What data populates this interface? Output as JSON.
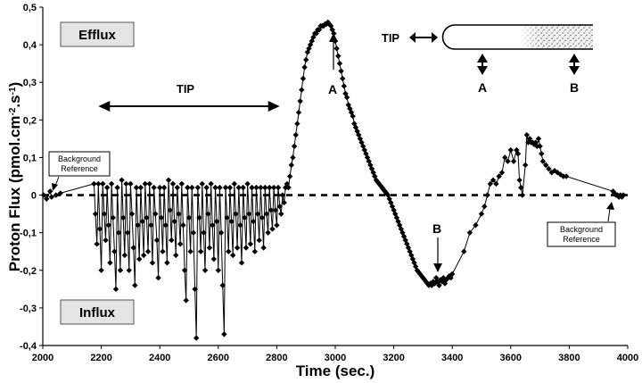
{
  "chart_data": {
    "type": "line",
    "xlabel": "Time (sec.)",
    "ylabel_main": "Proton Flux (pmol.cm",
    "ylabel_sup1": "-2",
    "ylabel_mid": ".s",
    "ylabel_sup2": "-1",
    "ylabel_end": ")",
    "xlim": [
      2000,
      4000
    ],
    "ylim": [
      -0.4,
      0.5
    ],
    "x_ticks": [
      2000,
      2200,
      2400,
      2600,
      2800,
      3000,
      3200,
      3400,
      3600,
      3800,
      4000
    ],
    "y_ticks": [
      {
        "v": 0.5,
        "label": "0,5"
      },
      {
        "v": 0.4,
        "label": "0,4"
      },
      {
        "v": 0.3,
        "label": "0,3"
      },
      {
        "v": 0.2,
        "label": "0,2"
      },
      {
        "v": 0.1,
        "label": "0,1"
      },
      {
        "v": 0,
        "label": "0"
      },
      {
        "v": -0.1,
        "label": "-0,1"
      },
      {
        "v": -0.2,
        "label": "-0,2"
      },
      {
        "v": -0.3,
        "label": "-0,3"
      },
      {
        "v": -0.4,
        "label": "-0,4"
      }
    ],
    "reference_line": {
      "y": 0,
      "style": "dashed"
    },
    "grid": false,
    "series": [
      {
        "marker": "diamond",
        "color": "#000000",
        "points": [
          [
            2003,
            0.0
          ],
          [
            2013,
            -0.01
          ],
          [
            2025,
            0.01
          ],
          [
            2030,
            -0.005
          ],
          [
            2045,
            0.0
          ],
          [
            2060,
            0.005
          ],
          [
            2175,
            0.03
          ],
          [
            2180,
            -0.05
          ],
          [
            2185,
            -0.13
          ],
          [
            2190,
            0.03
          ],
          [
            2195,
            -0.09
          ],
          [
            2200,
            -0.2
          ],
          [
            2205,
            0.03
          ],
          [
            2210,
            -0.05
          ],
          [
            2215,
            -0.12
          ],
          [
            2220,
            0.02
          ],
          [
            2225,
            -0.08
          ],
          [
            2230,
            -0.18
          ],
          [
            2235,
            0.03
          ],
          [
            2240,
            -0.06
          ],
          [
            2245,
            -0.15
          ],
          [
            2250,
            -0.25
          ],
          [
            2255,
            0.02
          ],
          [
            2260,
            -0.1
          ],
          [
            2265,
            -0.2
          ],
          [
            2270,
            0.04
          ],
          [
            2275,
            -0.06
          ],
          [
            2280,
            -0.16
          ],
          [
            2285,
            0.03
          ],
          [
            2290,
            -0.1
          ],
          [
            2295,
            -0.2
          ],
          [
            2300,
            0.03
          ],
          [
            2305,
            -0.05
          ],
          [
            2310,
            -0.14
          ],
          [
            2315,
            -0.24
          ],
          [
            2320,
            0.02
          ],
          [
            2325,
            -0.08
          ],
          [
            2330,
            -0.17
          ],
          [
            2335,
            0.02
          ],
          [
            2340,
            -0.07
          ],
          [
            2345,
            -0.16
          ],
          [
            2350,
            0.03
          ],
          [
            2355,
            -0.06
          ],
          [
            2360,
            -0.15
          ],
          [
            2365,
            0.03
          ],
          [
            2370,
            -0.08
          ],
          [
            2375,
            -0.18
          ],
          [
            2380,
            0.02
          ],
          [
            2385,
            -0.05
          ],
          [
            2390,
            -0.12
          ],
          [
            2395,
            -0.22
          ],
          [
            2400,
            0.02
          ],
          [
            2405,
            -0.06
          ],
          [
            2410,
            -0.15
          ],
          [
            2415,
            0.02
          ],
          [
            2420,
            -0.08
          ],
          [
            2425,
            -0.18
          ],
          [
            2430,
            0.04
          ],
          [
            2435,
            -0.04
          ],
          [
            2440,
            -0.12
          ],
          [
            2445,
            0.03
          ],
          [
            2450,
            -0.07
          ],
          [
            2455,
            -0.16
          ],
          [
            2460,
            0.02
          ],
          [
            2465,
            -0.05
          ],
          [
            2470,
            -0.13
          ],
          [
            2475,
            0.03
          ],
          [
            2480,
            -0.08
          ],
          [
            2485,
            -0.2
          ],
          [
            2490,
            -0.28
          ],
          [
            2495,
            0.02
          ],
          [
            2500,
            -0.06
          ],
          [
            2505,
            -0.15
          ],
          [
            2510,
            0.02
          ],
          [
            2515,
            -0.1
          ],
          [
            2520,
            -0.25
          ],
          [
            2525,
            -0.38
          ],
          [
            2530,
            0.02
          ],
          [
            2535,
            -0.06
          ],
          [
            2540,
            -0.15
          ],
          [
            2545,
            0.03
          ],
          [
            2550,
            -0.1
          ],
          [
            2555,
            -0.2
          ],
          [
            2560,
            0.02
          ],
          [
            2565,
            -0.05
          ],
          [
            2570,
            -0.14
          ],
          [
            2575,
            0.03
          ],
          [
            2580,
            -0.08
          ],
          [
            2585,
            -0.17
          ],
          [
            2590,
            0.02
          ],
          [
            2595,
            -0.07
          ],
          [
            2600,
            -0.2
          ],
          [
            2605,
            0.02
          ],
          [
            2610,
            -0.1
          ],
          [
            2615,
            -0.24
          ],
          [
            2620,
            -0.37
          ],
          [
            2625,
            0.02
          ],
          [
            2630,
            -0.06
          ],
          [
            2635,
            -0.15
          ],
          [
            2640,
            0.02
          ],
          [
            2645,
            -0.07
          ],
          [
            2650,
            -0.16
          ],
          [
            2655,
            0.03
          ],
          [
            2660,
            -0.05
          ],
          [
            2665,
            -0.14
          ],
          [
            2670,
            0.02
          ],
          [
            2675,
            -0.08
          ],
          [
            2680,
            -0.18
          ],
          [
            2685,
            0.02
          ],
          [
            2690,
            -0.06
          ],
          [
            2695,
            -0.14
          ],
          [
            2700,
            0.03
          ],
          [
            2705,
            -0.05
          ],
          [
            2710,
            -0.13
          ],
          [
            2715,
            0.02
          ],
          [
            2720,
            -0.07
          ],
          [
            2725,
            -0.15
          ],
          [
            2730,
            0.02
          ],
          [
            2735,
            -0.05
          ],
          [
            2740,
            -0.12
          ],
          [
            2745,
            0.02
          ],
          [
            2750,
            -0.06
          ],
          [
            2755,
            -0.14
          ],
          [
            2760,
            0.02
          ],
          [
            2765,
            -0.05
          ],
          [
            2770,
            -0.1
          ],
          [
            2775,
            0.02
          ],
          [
            2780,
            -0.04
          ],
          [
            2785,
            -0.09
          ],
          [
            2790,
            0.02
          ],
          [
            2795,
            -0.04
          ],
          [
            2800,
            -0.08
          ],
          [
            2805,
            0.02
          ],
          [
            2810,
            -0.03
          ],
          [
            2815,
            -0.05
          ],
          [
            2820,
            0.0
          ],
          [
            2825,
            -0.02
          ],
          [
            2830,
            0.02
          ],
          [
            2835,
            0.03
          ],
          [
            2840,
            0.02
          ],
          [
            2845,
            0.05
          ],
          [
            2850,
            0.08
          ],
          [
            2855,
            0.1
          ],
          [
            2860,
            0.13
          ],
          [
            2865,
            0.16
          ],
          [
            2870,
            0.19
          ],
          [
            2875,
            0.22
          ],
          [
            2880,
            0.25
          ],
          [
            2885,
            0.28
          ],
          [
            2890,
            0.31
          ],
          [
            2895,
            0.34
          ],
          [
            2900,
            0.36
          ],
          [
            2905,
            0.38
          ],
          [
            2910,
            0.39
          ],
          [
            2915,
            0.4
          ],
          [
            2920,
            0.41
          ],
          [
            2925,
            0.42
          ],
          [
            2930,
            0.43
          ],
          [
            2935,
            0.43
          ],
          [
            2940,
            0.44
          ],
          [
            2945,
            0.44
          ],
          [
            2950,
            0.45
          ],
          [
            2955,
            0.45
          ],
          [
            2960,
            0.45
          ],
          [
            2965,
            0.455
          ],
          [
            2970,
            0.455
          ],
          [
            2975,
            0.46
          ],
          [
            2980,
            0.455
          ],
          [
            2985,
            0.45
          ],
          [
            2990,
            0.44
          ],
          [
            2995,
            0.43
          ],
          [
            3000,
            0.41
          ],
          [
            3005,
            0.39
          ],
          [
            3010,
            0.37
          ],
          [
            3015,
            0.35
          ],
          [
            3020,
            0.33
          ],
          [
            3025,
            0.31
          ],
          [
            3030,
            0.29
          ],
          [
            3035,
            0.27
          ],
          [
            3040,
            0.26
          ],
          [
            3045,
            0.24
          ],
          [
            3050,
            0.23
          ],
          [
            3055,
            0.22
          ],
          [
            3060,
            0.21
          ],
          [
            3065,
            0.19
          ],
          [
            3070,
            0.18
          ],
          [
            3075,
            0.17
          ],
          [
            3080,
            0.16
          ],
          [
            3085,
            0.15
          ],
          [
            3090,
            0.14
          ],
          [
            3095,
            0.13
          ],
          [
            3100,
            0.12
          ],
          [
            3105,
            0.11
          ],
          [
            3110,
            0.1
          ],
          [
            3115,
            0.09
          ],
          [
            3120,
            0.08
          ],
          [
            3125,
            0.07
          ],
          [
            3130,
            0.06
          ],
          [
            3135,
            0.05
          ],
          [
            3140,
            0.04
          ],
          [
            3145,
            0.035
          ],
          [
            3150,
            0.03
          ],
          [
            3155,
            0.025
          ],
          [
            3160,
            0.02
          ],
          [
            3165,
            0.015
          ],
          [
            3170,
            0.01
          ],
          [
            3175,
            0.005
          ],
          [
            3180,
            0.0
          ],
          [
            3185,
            -0.01
          ],
          [
            3190,
            -0.02
          ],
          [
            3195,
            -0.03
          ],
          [
            3200,
            -0.04
          ],
          [
            3205,
            -0.05
          ],
          [
            3210,
            -0.06
          ],
          [
            3215,
            -0.07
          ],
          [
            3220,
            -0.08
          ],
          [
            3225,
            -0.09
          ],
          [
            3230,
            -0.1
          ],
          [
            3235,
            -0.11
          ],
          [
            3240,
            -0.12
          ],
          [
            3245,
            -0.13
          ],
          [
            3250,
            -0.14
          ],
          [
            3255,
            -0.15
          ],
          [
            3260,
            -0.16
          ],
          [
            3265,
            -0.17
          ],
          [
            3270,
            -0.18
          ],
          [
            3275,
            -0.19
          ],
          [
            3280,
            -0.2
          ],
          [
            3285,
            -0.205
          ],
          [
            3290,
            -0.21
          ],
          [
            3295,
            -0.215
          ],
          [
            3300,
            -0.22
          ],
          [
            3305,
            -0.225
          ],
          [
            3310,
            -0.23
          ],
          [
            3315,
            -0.235
          ],
          [
            3320,
            -0.24
          ],
          [
            3325,
            -0.235
          ],
          [
            3330,
            -0.24
          ],
          [
            3335,
            -0.23
          ],
          [
            3340,
            -0.235
          ],
          [
            3345,
            -0.22
          ],
          [
            3350,
            -0.23
          ],
          [
            3355,
            -0.24
          ],
          [
            3360,
            -0.225
          ],
          [
            3365,
            -0.23
          ],
          [
            3370,
            -0.22
          ],
          [
            3375,
            -0.235
          ],
          [
            3380,
            -0.225
          ],
          [
            3385,
            -0.22
          ],
          [
            3390,
            -0.215
          ],
          [
            3395,
            -0.22
          ],
          [
            3400,
            -0.21
          ],
          [
            3440,
            -0.15
          ],
          [
            3460,
            -0.1
          ],
          [
            3480,
            -0.08
          ],
          [
            3500,
            -0.05
          ],
          [
            3510,
            -0.03
          ],
          [
            3520,
            0.0
          ],
          [
            3530,
            0.03
          ],
          [
            3540,
            0.04
          ],
          [
            3550,
            0.03
          ],
          [
            3560,
            0.05
          ],
          [
            3570,
            0.06
          ],
          [
            3580,
            0.1
          ],
          [
            3590,
            0.09
          ],
          [
            3600,
            0.12
          ],
          [
            3610,
            0.09
          ],
          [
            3620,
            0.12
          ],
          [
            3625,
            0.11
          ],
          [
            3630,
            0.04
          ],
          [
            3635,
            0.02
          ],
          [
            3640,
            0.0
          ],
          [
            3650,
            0.08
          ],
          [
            3655,
            0.16
          ],
          [
            3660,
            0.14
          ],
          [
            3665,
            0.15
          ],
          [
            3670,
            0.14
          ],
          [
            3675,
            0.14
          ],
          [
            3680,
            0.135
          ],
          [
            3685,
            0.14
          ],
          [
            3690,
            0.13
          ],
          [
            3695,
            0.15
          ],
          [
            3700,
            0.13
          ],
          [
            3705,
            0.11
          ],
          [
            3710,
            0.09
          ],
          [
            3720,
            0.08
          ],
          [
            3730,
            0.07
          ],
          [
            3740,
            0.06
          ],
          [
            3750,
            0.065
          ],
          [
            3760,
            0.06
          ],
          [
            3770,
            0.055
          ],
          [
            3780,
            0.05
          ],
          [
            3790,
            0.05
          ],
          [
            3950,
            0.01
          ],
          [
            3955,
            0.005
          ],
          [
            3960,
            0.0
          ],
          [
            3965,
            0.0
          ],
          [
            3970,
            -0.005
          ],
          [
            3975,
            0.0
          ],
          [
            3980,
            -0.005
          ],
          [
            3985,
            0.0
          ]
        ]
      }
    ],
    "annotations": {
      "efflux": "Efflux",
      "influx": "Influx",
      "tip_range": "TIP",
      "tip_range_x": [
        2190,
        2810
      ],
      "bg_ref_left_line1": "Background",
      "bg_ref_left_line2": "Reference",
      "bg_ref_right_line1": "Background",
      "bg_ref_right_line2": "Reference",
      "label_a": "A",
      "label_b": "B",
      "inset_tip": "TIP",
      "inset_a": "A",
      "inset_b": "B"
    }
  }
}
